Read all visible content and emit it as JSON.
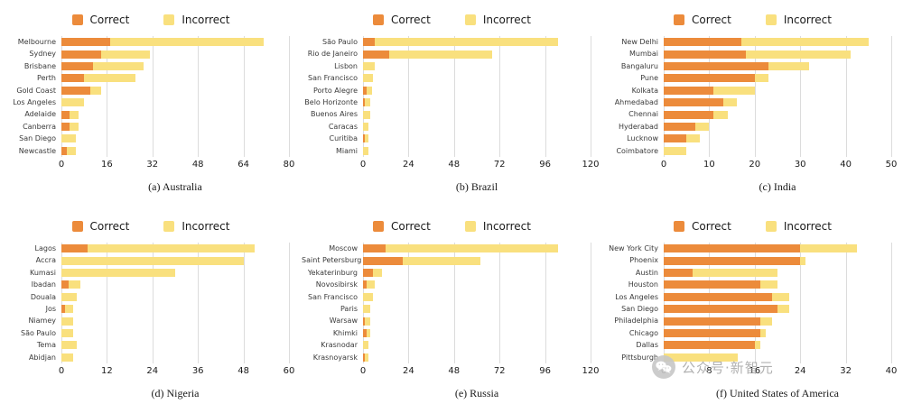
{
  "figure": {
    "colors": {
      "correct": "#EC8B3B",
      "incorrect": "#F9E07E",
      "gridline": "#DCDCDC"
    }
  },
  "watermark": {
    "icon": "wechat-icon",
    "text": "公众号·新智元"
  },
  "chart_data": [
    {
      "id": "australia",
      "type": "bar",
      "stacked": true,
      "orientation": "horizontal",
      "caption": "(a) Australia",
      "grid": true,
      "legend_position": "top",
      "xlim": [
        0,
        80
      ],
      "xticks": [
        0,
        16,
        32,
        48,
        64,
        80
      ],
      "categories": [
        "Melbourne",
        "Sydney",
        "Brisbane",
        "Perth",
        "Gold Coast",
        "Los Angeles",
        "Adelaide",
        "Canberra",
        "San Diego",
        "Newcastle"
      ],
      "series": [
        {
          "name": "Correct",
          "values": [
            17,
            14,
            11,
            8,
            10,
            0,
            3,
            3,
            0,
            2
          ]
        },
        {
          "name": "Incorrect",
          "values": [
            54,
            17,
            18,
            18,
            4,
            8,
            3,
            3,
            5,
            3
          ]
        }
      ]
    },
    {
      "id": "brazil",
      "type": "bar",
      "stacked": true,
      "orientation": "horizontal",
      "caption": "(b) Brazil",
      "grid": true,
      "legend_position": "top",
      "xlim": [
        0,
        120
      ],
      "xticks": [
        0,
        24,
        48,
        72,
        96,
        120
      ],
      "categories": [
        "São Paulo",
        "Rio de Janeiro",
        "Lisbon",
        "San Francisco",
        "Porto Alegre",
        "Belo Horizonte",
        "Buenos Aires",
        "Caracas",
        "Curitiba",
        "Miami"
      ],
      "series": [
        {
          "name": "Correct",
          "values": [
            6,
            14,
            0,
            0,
            2,
            1,
            0,
            0,
            1,
            0
          ]
        },
        {
          "name": "Incorrect",
          "values": [
            97,
            54,
            6,
            5,
            3,
            3,
            4,
            3,
            2,
            3
          ]
        }
      ]
    },
    {
      "id": "india",
      "type": "bar",
      "stacked": true,
      "orientation": "horizontal",
      "caption": "(c) India",
      "grid": true,
      "legend_position": "top",
      "xlim": [
        0,
        50
      ],
      "xticks": [
        0,
        10,
        20,
        30,
        40,
        50
      ],
      "categories": [
        "New Delhi",
        "Mumbai",
        "Bangaluru",
        "Pune",
        "Kolkata",
        "Ahmedabad",
        "Chennai",
        "Hyderabad",
        "Lucknow",
        "Coimbatore"
      ],
      "series": [
        {
          "name": "Correct",
          "values": [
            17,
            18,
            23,
            20,
            11,
            13,
            11,
            7,
            5,
            0
          ]
        },
        {
          "name": "Incorrect",
          "values": [
            28,
            23,
            9,
            3,
            9,
            3,
            3,
            3,
            3,
            5
          ]
        }
      ]
    },
    {
      "id": "nigeria",
      "type": "bar",
      "stacked": true,
      "orientation": "horizontal",
      "caption": "(d) Nigeria",
      "grid": true,
      "legend_position": "top",
      "xlim": [
        0,
        60
      ],
      "xticks": [
        0,
        12,
        24,
        36,
        48,
        60
      ],
      "categories": [
        "Lagos",
        "Accra",
        "Kumasi",
        "Ibadan",
        "Douala",
        "Jos",
        "Niamey",
        "São Paulo",
        "Tema",
        "Abidjan"
      ],
      "series": [
        {
          "name": "Correct",
          "values": [
            7,
            0,
            0,
            2,
            0,
            1,
            0,
            0,
            0,
            0
          ]
        },
        {
          "name": "Incorrect",
          "values": [
            44,
            48,
            30,
            3,
            4,
            2,
            3,
            3,
            4,
            3
          ]
        }
      ]
    },
    {
      "id": "russia",
      "type": "bar",
      "stacked": true,
      "orientation": "horizontal",
      "caption": "(e) Russia",
      "grid": true,
      "legend_position": "top",
      "xlim": [
        0,
        120
      ],
      "xticks": [
        0,
        24,
        48,
        72,
        96,
        120
      ],
      "categories": [
        "Moscow",
        "Saint Petersburg",
        "Yekaterinburg",
        "Novosibirsk",
        "San Francisco",
        "Paris",
        "Warsaw",
        "Khimki",
        "Krasnodar",
        "Krasnoyarsk"
      ],
      "series": [
        {
          "name": "Correct",
          "values": [
            12,
            21,
            5,
            2,
            0,
            0,
            1,
            2,
            0,
            1
          ]
        },
        {
          "name": "Incorrect",
          "values": [
            91,
            41,
            5,
            4,
            5,
            4,
            3,
            2,
            3,
            2
          ]
        }
      ]
    },
    {
      "id": "united-states",
      "type": "bar",
      "stacked": true,
      "orientation": "horizontal",
      "caption": "(f) United States of America",
      "grid": true,
      "legend_position": "top",
      "xlim": [
        0,
        40
      ],
      "xticks": [
        0,
        8,
        16,
        24,
        32,
        40
      ],
      "categories": [
        "New York City",
        "Phoenix",
        "Austin",
        "Houston",
        "Los Angeles",
        "San Diego",
        "Philadelphia",
        "Chicago",
        "Dallas",
        "Pittsburgh"
      ],
      "series": [
        {
          "name": "Correct",
          "values": [
            24,
            24,
            5,
            17,
            19,
            20,
            17,
            17,
            16,
            0
          ]
        },
        {
          "name": "Incorrect",
          "values": [
            10,
            1,
            15,
            3,
            3,
            2,
            2,
            1,
            1,
            13
          ]
        }
      ]
    }
  ]
}
